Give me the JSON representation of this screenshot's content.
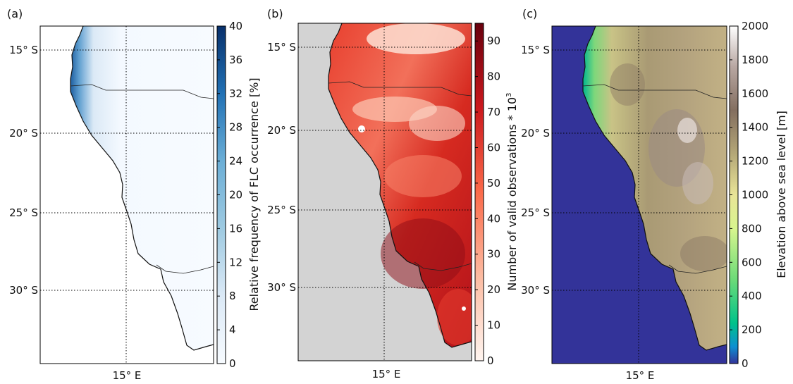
{
  "panels": [
    {
      "id": "a",
      "panel_label": "(a)",
      "lat_ticks": [
        "15° S",
        "20° S",
        "25° S",
        "30° S"
      ],
      "lon_tick": "15° E",
      "colorbar": {
        "label": "Relative frequency of FLC occurrence [%]",
        "colormap": "Blues",
        "min": 0,
        "max": 40,
        "ticks": [
          "0",
          "4",
          "8",
          "12",
          "16",
          "20",
          "24",
          "28",
          "32",
          "36",
          "40"
        ]
      },
      "land_color": "#f4f9ff",
      "ocean_color": "#ffffff",
      "coastal_color": "#1f5fa0"
    },
    {
      "id": "b",
      "panel_label": "(b)",
      "lat_ticks": [
        "15° S",
        "20° S",
        "25° S",
        "30° S"
      ],
      "lon_tick": "15° E",
      "colorbar": {
        "label": "Number of valid observations * 10",
        "label_superscript": "3",
        "colormap": "Reds",
        "min": 0,
        "max": 95,
        "ticks": [
          "0",
          "10",
          "20",
          "30",
          "40",
          "50",
          "60",
          "70",
          "80",
          "90"
        ]
      },
      "ocean_color": "#d3d3d3"
    },
    {
      "id": "c",
      "panel_label": "(c)",
      "lat_ticks": [
        "15° S",
        "20° S",
        "25° S",
        "30° S"
      ],
      "lon_tick": "15° E",
      "colorbar": {
        "label": "Elevation above sea level [m]",
        "colormap": "terrain",
        "min": 0,
        "max": 2000,
        "ticks": [
          "0",
          "200",
          "400",
          "600",
          "800",
          "1000",
          "1200",
          "1400",
          "1600",
          "1800",
          "2000"
        ]
      },
      "ocean_color": "#333399"
    }
  ]
}
